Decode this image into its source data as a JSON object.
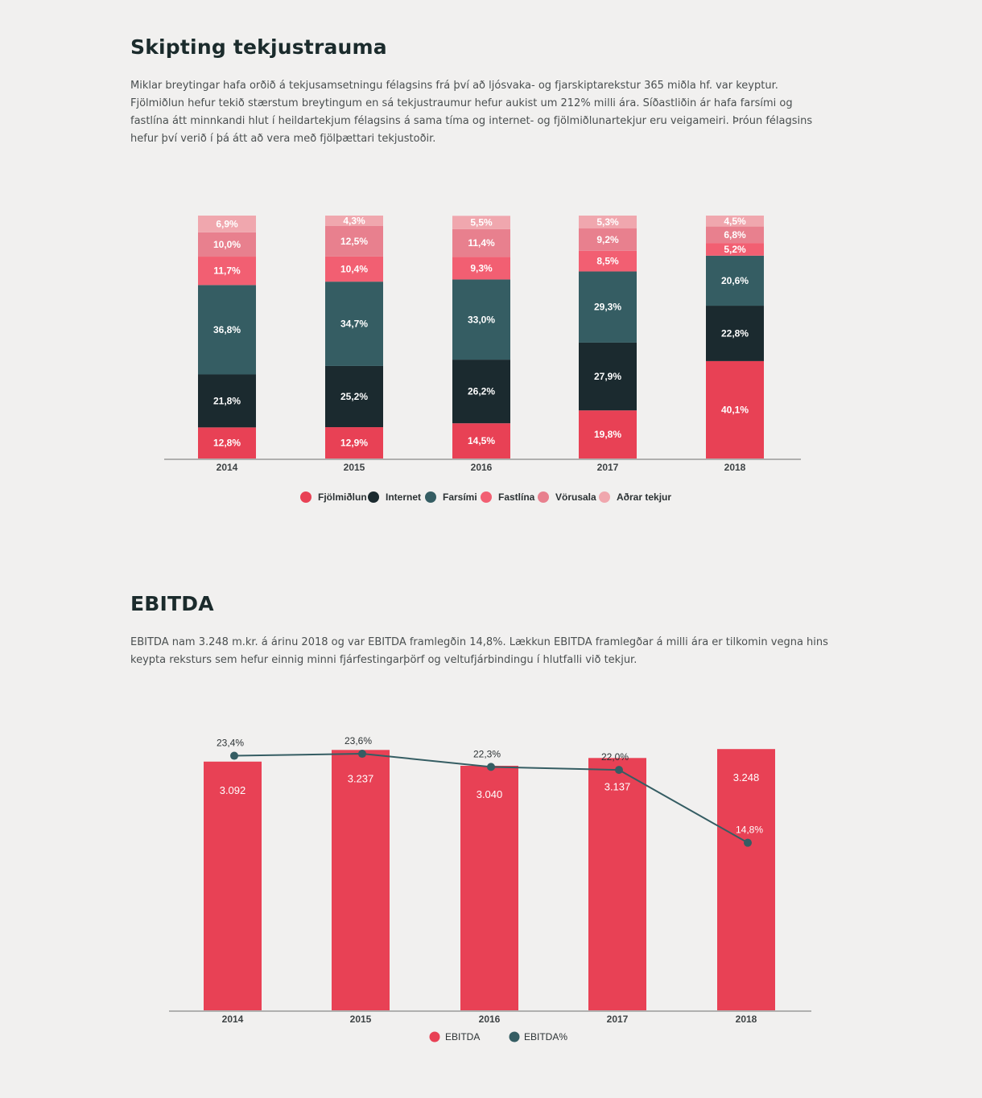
{
  "section1": {
    "title": "Skipting tekjustrauma",
    "paragraph": "Miklar breytingar hafa orðið á tekjusamsetningu félagsins frá því að ljósvaka- og fjarskiptarekstur 365 miðla hf. var keyptur. Fjölmiðlun hefur tekið stærstum breytingum en sá tekjustraumur hefur aukist um 212% milli ára. Síðastliðin ár hafa farsími og fastlína átt minnkandi hlut í heildartekjum félagsins á sama tíma og internet- og fjölmiðlunartekjur eru veigameiri. Þróun félagsins hefur því verið í þá átt að vera með fjölþættari tekjustoðir."
  },
  "section2": {
    "title": "EBITDA",
    "paragraph": "EBITDA nam 3.248 m.kr. á árinu 2018 og var EBITDA framlegðin 14,8%. Lækkun EBITDA framlegðar á milli ára er tilkomin vegna hins keypta reksturs sem hefur einnig minni fjárfestingarþörf og veltufjárbindingu í hlutfalli við tekjur."
  },
  "chart_data": [
    {
      "type": "bar",
      "stacked": true,
      "title": "",
      "xlabel": "",
      "ylabel": "",
      "categories": [
        "2014",
        "2015",
        "2016",
        "2017",
        "2018"
      ],
      "ylim": [
        0,
        100
      ],
      "legend_position": "bottom",
      "series": [
        {
          "name": "Fjölmiðlun",
          "color": "#e84155",
          "values": [
            12.8,
            12.9,
            14.5,
            19.8,
            40.1
          ],
          "labels": [
            "12,8%",
            "12,9%",
            "14,5%",
            "19,8%",
            "40,1%"
          ]
        },
        {
          "name": "Internet",
          "color": "#1b2a2f",
          "values": [
            21.8,
            25.2,
            26.2,
            27.9,
            22.8
          ],
          "labels": [
            "21,8%",
            "25,2%",
            "26,2%",
            "27,9%",
            "22,8%"
          ]
        },
        {
          "name": "Farsími",
          "color": "#355d63",
          "values": [
            36.8,
            34.7,
            33.0,
            29.3,
            20.6
          ],
          "labels": [
            "36,8%",
            "34,7%",
            "33,0%",
            "29,3%",
            "20,6%"
          ]
        },
        {
          "name": "Fastlína",
          "color": "#f25f72",
          "values": [
            11.7,
            10.4,
            9.3,
            8.5,
            5.2
          ],
          "labels": [
            "11,7%",
            "10,4%",
            "9,3%",
            "8,5%",
            "5,2%"
          ]
        },
        {
          "name": "Vörusala",
          "color": "#e8808e",
          "values": [
            10.0,
            12.5,
            11.4,
            9.2,
            6.8
          ],
          "labels": [
            "10,0%",
            "12,5%",
            "11,4%",
            "9,2%",
            "6,8%"
          ]
        },
        {
          "name": "Aðrar tekjur",
          "color": "#f0a7ae",
          "values": [
            6.9,
            4.3,
            5.5,
            5.3,
            4.5
          ],
          "labels": [
            "6,9%",
            "4,3%",
            "5,5%",
            "5,3%",
            "4,5%"
          ]
        }
      ]
    },
    {
      "type": "bar",
      "title": "",
      "xlabel": "",
      "ylabel": "",
      "categories": [
        "2014",
        "2015",
        "2016",
        "2017",
        "2018"
      ],
      "legend_position": "bottom",
      "bar_series": {
        "name": "EBITDA",
        "color": "#e84155",
        "values": [
          3092,
          3237,
          3040,
          3137,
          3248
        ],
        "labels": [
          "3.092",
          "3.237",
          "3.040",
          "3.137",
          "3.248"
        ],
        "ylim": [
          0,
          3300
        ]
      },
      "line_series": {
        "name": "EBITDA%",
        "color": "#355d63",
        "values": [
          23.4,
          23.6,
          22.3,
          22.0,
          14.8
        ],
        "labels": [
          "23,4%",
          "23,6%",
          "22,3%",
          "22,0%",
          "14,8%"
        ]
      }
    }
  ]
}
